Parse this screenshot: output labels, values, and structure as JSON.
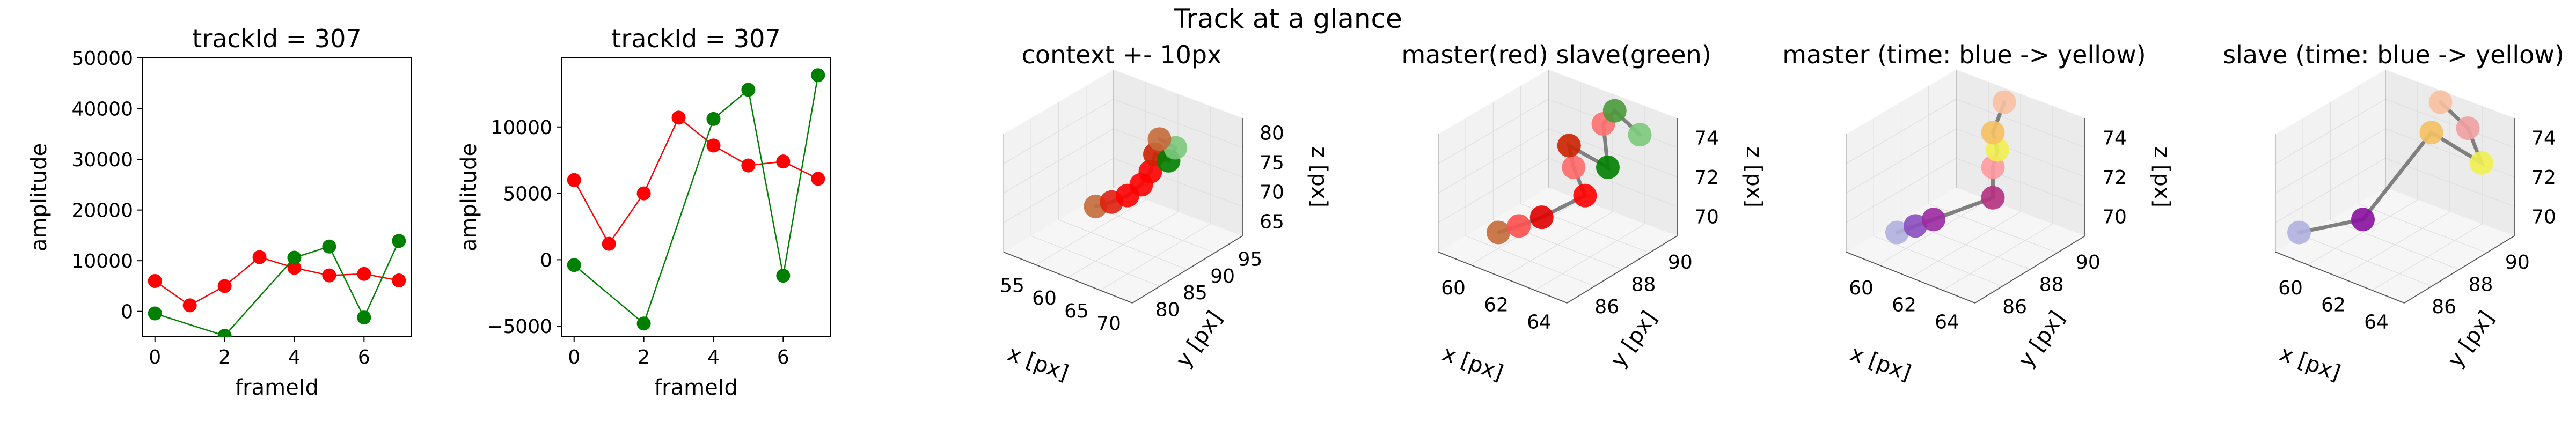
{
  "suptitle": "Track at a glance",
  "colors": {
    "master": "#ff0000",
    "slave": "#008000",
    "connector": "#808080"
  },
  "chart_data": [
    {
      "type": "line",
      "title": "trackId = 307",
      "xlabel": "frameId",
      "ylabel": "amplitude",
      "xlim": [
        -0.35,
        7.35
      ],
      "ylim": [
        -5000,
        50000
      ],
      "xticks": [
        "0",
        "2",
        "4",
        "6"
      ],
      "yticks": [
        "0",
        "10000",
        "20000",
        "30000",
        "40000",
        "50000"
      ],
      "series": [
        {
          "color": "#ff0000",
          "x": [
            0,
            1,
            2,
            3,
            4,
            5,
            6,
            7
          ],
          "y": [
            6000,
            1200,
            5000,
            10700,
            8600,
            7100,
            7400,
            6100
          ]
        },
        {
          "color": "#008000",
          "x": [
            0,
            2,
            4,
            5,
            6,
            7
          ],
          "y": [
            -400,
            -4800,
            10600,
            12800,
            -1200,
            13900
          ]
        }
      ]
    },
    {
      "type": "line",
      "title": "trackId = 307",
      "xlabel": "frameId",
      "ylabel": "amplitude",
      "xlim": [
        -0.35,
        7.35
      ],
      "ylim": [
        -5800,
        15200
      ],
      "xticks": [
        "0",
        "2",
        "4",
        "6"
      ],
      "yticks": [
        "−5000",
        "0",
        "5000",
        "10000"
      ],
      "series": [
        {
          "color": "#ff0000",
          "x": [
            0,
            1,
            2,
            3,
            4,
            5,
            6,
            7
          ],
          "y": [
            6000,
            1200,
            5000,
            10700,
            8600,
            7100,
            7400,
            6100
          ]
        },
        {
          "color": "#008000",
          "x": [
            0,
            2,
            4,
            5,
            6,
            7
          ],
          "y": [
            -400,
            -4800,
            10600,
            12800,
            -1200,
            13900
          ]
        }
      ]
    },
    {
      "type": "scatter3d",
      "title": "context +- 10px",
      "xlabel": "x [px]",
      "ylabel": "y [px]",
      "zlabel": "z [px]",
      "xticks": [
        "55",
        "60",
        "65",
        "70"
      ],
      "yticks": [
        "80",
        "85",
        "90",
        "95"
      ],
      "zticks": [
        "65",
        "70",
        "75",
        "80"
      ],
      "points": [
        {
          "u": 0.38,
          "v": 0.42,
          "color": "#c46c3a"
        },
        {
          "u": 0.45,
          "v": 0.44,
          "color": "#e02010"
        },
        {
          "u": 0.52,
          "v": 0.47,
          "color": "#ff0000"
        },
        {
          "u": 0.58,
          "v": 0.52,
          "color": "#ff0000"
        },
        {
          "u": 0.62,
          "v": 0.58,
          "color": "#ff0000"
        },
        {
          "u": 0.64,
          "v": 0.66,
          "color": "#cc2200"
        },
        {
          "u": 0.7,
          "v": 0.63,
          "color": "#008000"
        },
        {
          "u": 0.73,
          "v": 0.69,
          "color": "#7cc97c"
        },
        {
          "u": 0.66,
          "v": 0.73,
          "color": "#c46c3a"
        }
      ]
    },
    {
      "type": "scatter3d",
      "title": "master(red) slave(green)",
      "xlabel": "x [px]",
      "ylabel": "y [px]",
      "zlabel": "z [px]",
      "xticks": [
        "60",
        "62",
        "64"
      ],
      "yticks": [
        "86",
        "88",
        "90"
      ],
      "zticks": [
        "70",
        "72",
        "74"
      ],
      "points": [
        {
          "u": 0.24,
          "v": 0.3,
          "color": "#c46c3a"
        },
        {
          "u": 0.33,
          "v": 0.33,
          "color": "#ff5050"
        },
        {
          "u": 0.43,
          "v": 0.37,
          "color": "#e00000"
        },
        {
          "u": 0.62,
          "v": 0.47,
          "color": "#ff0000"
        },
        {
          "u": 0.57,
          "v": 0.6,
          "color": "#ff6a6a"
        },
        {
          "u": 0.55,
          "v": 0.7,
          "color": "#cc2200"
        },
        {
          "u": 0.72,
          "v": 0.6,
          "color": "#008000"
        },
        {
          "u": 0.7,
          "v": 0.8,
          "color": "#ff7070"
        },
        {
          "u": 0.75,
          "v": 0.86,
          "color": "#4a9a3a"
        },
        {
          "u": 0.86,
          "v": 0.75,
          "color": "#7cc97c"
        }
      ]
    },
    {
      "type": "scatter3d",
      "title": "master (time: blue -> yellow)",
      "xlabel": "x [px]",
      "ylabel": "y [px]",
      "zlabel": "z [px]",
      "xticks": [
        "60",
        "62",
        "64"
      ],
      "yticks": [
        "86",
        "88",
        "90"
      ],
      "zticks": [
        "70",
        "72",
        "74"
      ],
      "points": [
        {
          "u": 0.2,
          "v": 0.3,
          "color": "#b0b0e0"
        },
        {
          "u": 0.28,
          "v": 0.33,
          "color": "#8a4ec0"
        },
        {
          "u": 0.36,
          "v": 0.36,
          "color": "#9b2aa0"
        },
        {
          "u": 0.62,
          "v": 0.46,
          "color": "#b43080"
        },
        {
          "u": 0.62,
          "v": 0.6,
          "color": "#ff9aa0"
        },
        {
          "u": 0.64,
          "v": 0.68,
          "color": "#f0f050"
        },
        {
          "u": 0.62,
          "v": 0.76,
          "color": "#f6c060"
        },
        {
          "u": 0.67,
          "v": 0.9,
          "color": "#f8c0a0"
        }
      ]
    },
    {
      "type": "scatter3d",
      "title": "slave (time: blue -> yellow)",
      "xlabel": "x [px]",
      "ylabel": "y [px]",
      "zlabel": "z [px]",
      "xticks": [
        "60",
        "62",
        "64"
      ],
      "yticks": [
        "86",
        "88",
        "90"
      ],
      "zticks": [
        "70",
        "72",
        "74"
      ],
      "points": [
        {
          "u": 0.08,
          "v": 0.3,
          "color": "#b0b0e0"
        },
        {
          "u": 0.36,
          "v": 0.36,
          "color": "#8a10a0"
        },
        {
          "u": 0.66,
          "v": 0.76,
          "color": "#f6c060"
        },
        {
          "u": 0.88,
          "v": 0.62,
          "color": "#f0f050"
        },
        {
          "u": 0.82,
          "v": 0.78,
          "color": "#f0a0a0"
        },
        {
          "u": 0.7,
          "v": 0.9,
          "color": "#f8c0a0"
        }
      ]
    }
  ]
}
